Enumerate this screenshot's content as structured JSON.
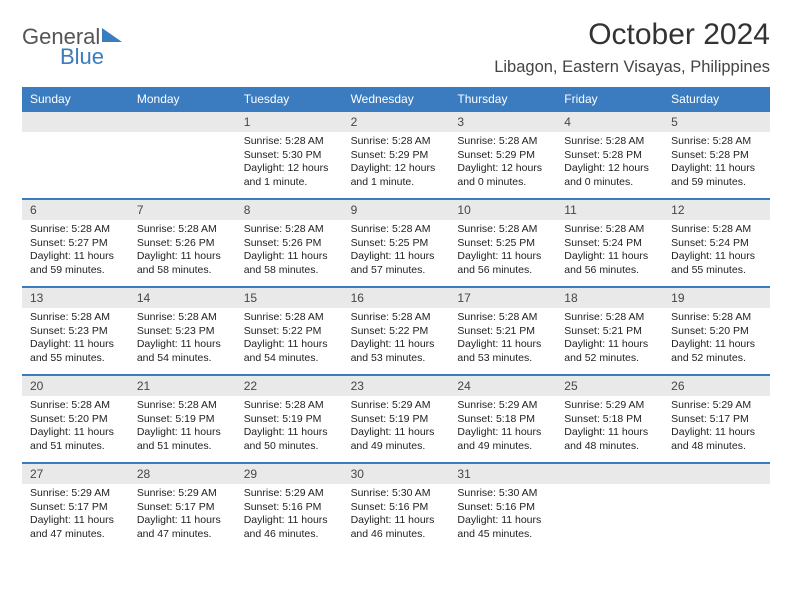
{
  "brand": {
    "word1": "General",
    "word2": "Blue"
  },
  "title": "October 2024",
  "location": "Libagon, Eastern Visayas, Philippines",
  "colors": {
    "accent": "#3b7bbf",
    "daynum_bg": "#e9e9e9",
    "text": "#222222",
    "muted": "#555555"
  },
  "weekdays": [
    "Sunday",
    "Monday",
    "Tuesday",
    "Wednesday",
    "Thursday",
    "Friday",
    "Saturday"
  ],
  "weeks": [
    {
      "days": [
        {
          "num": "",
          "sunrise": "",
          "sunset": "",
          "daylight": ""
        },
        {
          "num": "",
          "sunrise": "",
          "sunset": "",
          "daylight": ""
        },
        {
          "num": "1",
          "sunrise": "Sunrise: 5:28 AM",
          "sunset": "Sunset: 5:30 PM",
          "daylight": "Daylight: 12 hours and 1 minute."
        },
        {
          "num": "2",
          "sunrise": "Sunrise: 5:28 AM",
          "sunset": "Sunset: 5:29 PM",
          "daylight": "Daylight: 12 hours and 1 minute."
        },
        {
          "num": "3",
          "sunrise": "Sunrise: 5:28 AM",
          "sunset": "Sunset: 5:29 PM",
          "daylight": "Daylight: 12 hours and 0 minutes."
        },
        {
          "num": "4",
          "sunrise": "Sunrise: 5:28 AM",
          "sunset": "Sunset: 5:28 PM",
          "daylight": "Daylight: 12 hours and 0 minutes."
        },
        {
          "num": "5",
          "sunrise": "Sunrise: 5:28 AM",
          "sunset": "Sunset: 5:28 PM",
          "daylight": "Daylight: 11 hours and 59 minutes."
        }
      ]
    },
    {
      "days": [
        {
          "num": "6",
          "sunrise": "Sunrise: 5:28 AM",
          "sunset": "Sunset: 5:27 PM",
          "daylight": "Daylight: 11 hours and 59 minutes."
        },
        {
          "num": "7",
          "sunrise": "Sunrise: 5:28 AM",
          "sunset": "Sunset: 5:26 PM",
          "daylight": "Daylight: 11 hours and 58 minutes."
        },
        {
          "num": "8",
          "sunrise": "Sunrise: 5:28 AM",
          "sunset": "Sunset: 5:26 PM",
          "daylight": "Daylight: 11 hours and 58 minutes."
        },
        {
          "num": "9",
          "sunrise": "Sunrise: 5:28 AM",
          "sunset": "Sunset: 5:25 PM",
          "daylight": "Daylight: 11 hours and 57 minutes."
        },
        {
          "num": "10",
          "sunrise": "Sunrise: 5:28 AM",
          "sunset": "Sunset: 5:25 PM",
          "daylight": "Daylight: 11 hours and 56 minutes."
        },
        {
          "num": "11",
          "sunrise": "Sunrise: 5:28 AM",
          "sunset": "Sunset: 5:24 PM",
          "daylight": "Daylight: 11 hours and 56 minutes."
        },
        {
          "num": "12",
          "sunrise": "Sunrise: 5:28 AM",
          "sunset": "Sunset: 5:24 PM",
          "daylight": "Daylight: 11 hours and 55 minutes."
        }
      ]
    },
    {
      "days": [
        {
          "num": "13",
          "sunrise": "Sunrise: 5:28 AM",
          "sunset": "Sunset: 5:23 PM",
          "daylight": "Daylight: 11 hours and 55 minutes."
        },
        {
          "num": "14",
          "sunrise": "Sunrise: 5:28 AM",
          "sunset": "Sunset: 5:23 PM",
          "daylight": "Daylight: 11 hours and 54 minutes."
        },
        {
          "num": "15",
          "sunrise": "Sunrise: 5:28 AM",
          "sunset": "Sunset: 5:22 PM",
          "daylight": "Daylight: 11 hours and 54 minutes."
        },
        {
          "num": "16",
          "sunrise": "Sunrise: 5:28 AM",
          "sunset": "Sunset: 5:22 PM",
          "daylight": "Daylight: 11 hours and 53 minutes."
        },
        {
          "num": "17",
          "sunrise": "Sunrise: 5:28 AM",
          "sunset": "Sunset: 5:21 PM",
          "daylight": "Daylight: 11 hours and 53 minutes."
        },
        {
          "num": "18",
          "sunrise": "Sunrise: 5:28 AM",
          "sunset": "Sunset: 5:21 PM",
          "daylight": "Daylight: 11 hours and 52 minutes."
        },
        {
          "num": "19",
          "sunrise": "Sunrise: 5:28 AM",
          "sunset": "Sunset: 5:20 PM",
          "daylight": "Daylight: 11 hours and 52 minutes."
        }
      ]
    },
    {
      "days": [
        {
          "num": "20",
          "sunrise": "Sunrise: 5:28 AM",
          "sunset": "Sunset: 5:20 PM",
          "daylight": "Daylight: 11 hours and 51 minutes."
        },
        {
          "num": "21",
          "sunrise": "Sunrise: 5:28 AM",
          "sunset": "Sunset: 5:19 PM",
          "daylight": "Daylight: 11 hours and 51 minutes."
        },
        {
          "num": "22",
          "sunrise": "Sunrise: 5:28 AM",
          "sunset": "Sunset: 5:19 PM",
          "daylight": "Daylight: 11 hours and 50 minutes."
        },
        {
          "num": "23",
          "sunrise": "Sunrise: 5:29 AM",
          "sunset": "Sunset: 5:19 PM",
          "daylight": "Daylight: 11 hours and 49 minutes."
        },
        {
          "num": "24",
          "sunrise": "Sunrise: 5:29 AM",
          "sunset": "Sunset: 5:18 PM",
          "daylight": "Daylight: 11 hours and 49 minutes."
        },
        {
          "num": "25",
          "sunrise": "Sunrise: 5:29 AM",
          "sunset": "Sunset: 5:18 PM",
          "daylight": "Daylight: 11 hours and 48 minutes."
        },
        {
          "num": "26",
          "sunrise": "Sunrise: 5:29 AM",
          "sunset": "Sunset: 5:17 PM",
          "daylight": "Daylight: 11 hours and 48 minutes."
        }
      ]
    },
    {
      "days": [
        {
          "num": "27",
          "sunrise": "Sunrise: 5:29 AM",
          "sunset": "Sunset: 5:17 PM",
          "daylight": "Daylight: 11 hours and 47 minutes."
        },
        {
          "num": "28",
          "sunrise": "Sunrise: 5:29 AM",
          "sunset": "Sunset: 5:17 PM",
          "daylight": "Daylight: 11 hours and 47 minutes."
        },
        {
          "num": "29",
          "sunrise": "Sunrise: 5:29 AM",
          "sunset": "Sunset: 5:16 PM",
          "daylight": "Daylight: 11 hours and 46 minutes."
        },
        {
          "num": "30",
          "sunrise": "Sunrise: 5:30 AM",
          "sunset": "Sunset: 5:16 PM",
          "daylight": "Daylight: 11 hours and 46 minutes."
        },
        {
          "num": "31",
          "sunrise": "Sunrise: 5:30 AM",
          "sunset": "Sunset: 5:16 PM",
          "daylight": "Daylight: 11 hours and 45 minutes."
        },
        {
          "num": "",
          "sunrise": "",
          "sunset": "",
          "daylight": ""
        },
        {
          "num": "",
          "sunrise": "",
          "sunset": "",
          "daylight": ""
        }
      ]
    }
  ]
}
